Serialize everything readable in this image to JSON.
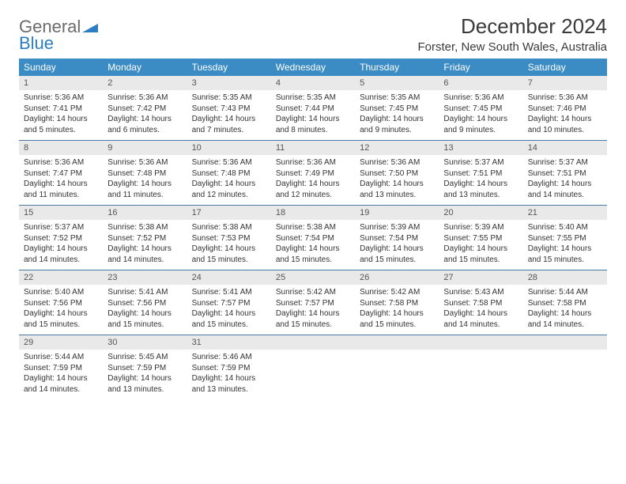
{
  "logo": {
    "word1": "General",
    "word2": "Blue"
  },
  "title": "December 2024",
  "subtitle": "Forster, New South Wales, Australia",
  "colors": {
    "header_bg": "#3b8bc4",
    "header_text": "#ffffff",
    "daynum_bg": "#e9e9e9",
    "row_border": "#4a7aa3",
    "logo_gray": "#6b6b6b",
    "logo_blue": "#2d7ec0",
    "text": "#333333"
  },
  "weekdays": [
    "Sunday",
    "Monday",
    "Tuesday",
    "Wednesday",
    "Thursday",
    "Friday",
    "Saturday"
  ],
  "weeks": [
    [
      {
        "num": "1",
        "sunrise": "Sunrise: 5:36 AM",
        "sunset": "Sunset: 7:41 PM",
        "daylight": "Daylight: 14 hours and 5 minutes."
      },
      {
        "num": "2",
        "sunrise": "Sunrise: 5:36 AM",
        "sunset": "Sunset: 7:42 PM",
        "daylight": "Daylight: 14 hours and 6 minutes."
      },
      {
        "num": "3",
        "sunrise": "Sunrise: 5:35 AM",
        "sunset": "Sunset: 7:43 PM",
        "daylight": "Daylight: 14 hours and 7 minutes."
      },
      {
        "num": "4",
        "sunrise": "Sunrise: 5:35 AM",
        "sunset": "Sunset: 7:44 PM",
        "daylight": "Daylight: 14 hours and 8 minutes."
      },
      {
        "num": "5",
        "sunrise": "Sunrise: 5:35 AM",
        "sunset": "Sunset: 7:45 PM",
        "daylight": "Daylight: 14 hours and 9 minutes."
      },
      {
        "num": "6",
        "sunrise": "Sunrise: 5:36 AM",
        "sunset": "Sunset: 7:45 PM",
        "daylight": "Daylight: 14 hours and 9 minutes."
      },
      {
        "num": "7",
        "sunrise": "Sunrise: 5:36 AM",
        "sunset": "Sunset: 7:46 PM",
        "daylight": "Daylight: 14 hours and 10 minutes."
      }
    ],
    [
      {
        "num": "8",
        "sunrise": "Sunrise: 5:36 AM",
        "sunset": "Sunset: 7:47 PM",
        "daylight": "Daylight: 14 hours and 11 minutes."
      },
      {
        "num": "9",
        "sunrise": "Sunrise: 5:36 AM",
        "sunset": "Sunset: 7:48 PM",
        "daylight": "Daylight: 14 hours and 11 minutes."
      },
      {
        "num": "10",
        "sunrise": "Sunrise: 5:36 AM",
        "sunset": "Sunset: 7:48 PM",
        "daylight": "Daylight: 14 hours and 12 minutes."
      },
      {
        "num": "11",
        "sunrise": "Sunrise: 5:36 AM",
        "sunset": "Sunset: 7:49 PM",
        "daylight": "Daylight: 14 hours and 12 minutes."
      },
      {
        "num": "12",
        "sunrise": "Sunrise: 5:36 AM",
        "sunset": "Sunset: 7:50 PM",
        "daylight": "Daylight: 14 hours and 13 minutes."
      },
      {
        "num": "13",
        "sunrise": "Sunrise: 5:37 AM",
        "sunset": "Sunset: 7:51 PM",
        "daylight": "Daylight: 14 hours and 13 minutes."
      },
      {
        "num": "14",
        "sunrise": "Sunrise: 5:37 AM",
        "sunset": "Sunset: 7:51 PM",
        "daylight": "Daylight: 14 hours and 14 minutes."
      }
    ],
    [
      {
        "num": "15",
        "sunrise": "Sunrise: 5:37 AM",
        "sunset": "Sunset: 7:52 PM",
        "daylight": "Daylight: 14 hours and 14 minutes."
      },
      {
        "num": "16",
        "sunrise": "Sunrise: 5:38 AM",
        "sunset": "Sunset: 7:52 PM",
        "daylight": "Daylight: 14 hours and 14 minutes."
      },
      {
        "num": "17",
        "sunrise": "Sunrise: 5:38 AM",
        "sunset": "Sunset: 7:53 PM",
        "daylight": "Daylight: 14 hours and 15 minutes."
      },
      {
        "num": "18",
        "sunrise": "Sunrise: 5:38 AM",
        "sunset": "Sunset: 7:54 PM",
        "daylight": "Daylight: 14 hours and 15 minutes."
      },
      {
        "num": "19",
        "sunrise": "Sunrise: 5:39 AM",
        "sunset": "Sunset: 7:54 PM",
        "daylight": "Daylight: 14 hours and 15 minutes."
      },
      {
        "num": "20",
        "sunrise": "Sunrise: 5:39 AM",
        "sunset": "Sunset: 7:55 PM",
        "daylight": "Daylight: 14 hours and 15 minutes."
      },
      {
        "num": "21",
        "sunrise": "Sunrise: 5:40 AM",
        "sunset": "Sunset: 7:55 PM",
        "daylight": "Daylight: 14 hours and 15 minutes."
      }
    ],
    [
      {
        "num": "22",
        "sunrise": "Sunrise: 5:40 AM",
        "sunset": "Sunset: 7:56 PM",
        "daylight": "Daylight: 14 hours and 15 minutes."
      },
      {
        "num": "23",
        "sunrise": "Sunrise: 5:41 AM",
        "sunset": "Sunset: 7:56 PM",
        "daylight": "Daylight: 14 hours and 15 minutes."
      },
      {
        "num": "24",
        "sunrise": "Sunrise: 5:41 AM",
        "sunset": "Sunset: 7:57 PM",
        "daylight": "Daylight: 14 hours and 15 minutes."
      },
      {
        "num": "25",
        "sunrise": "Sunrise: 5:42 AM",
        "sunset": "Sunset: 7:57 PM",
        "daylight": "Daylight: 14 hours and 15 minutes."
      },
      {
        "num": "26",
        "sunrise": "Sunrise: 5:42 AM",
        "sunset": "Sunset: 7:58 PM",
        "daylight": "Daylight: 14 hours and 15 minutes."
      },
      {
        "num": "27",
        "sunrise": "Sunrise: 5:43 AM",
        "sunset": "Sunset: 7:58 PM",
        "daylight": "Daylight: 14 hours and 14 minutes."
      },
      {
        "num": "28",
        "sunrise": "Sunrise: 5:44 AM",
        "sunset": "Sunset: 7:58 PM",
        "daylight": "Daylight: 14 hours and 14 minutes."
      }
    ],
    [
      {
        "num": "29",
        "sunrise": "Sunrise: 5:44 AM",
        "sunset": "Sunset: 7:59 PM",
        "daylight": "Daylight: 14 hours and 14 minutes."
      },
      {
        "num": "30",
        "sunrise": "Sunrise: 5:45 AM",
        "sunset": "Sunset: 7:59 PM",
        "daylight": "Daylight: 14 hours and 13 minutes."
      },
      {
        "num": "31",
        "sunrise": "Sunrise: 5:46 AM",
        "sunset": "Sunset: 7:59 PM",
        "daylight": "Daylight: 14 hours and 13 minutes."
      },
      {
        "empty": true
      },
      {
        "empty": true
      },
      {
        "empty": true
      },
      {
        "empty": true
      }
    ]
  ]
}
